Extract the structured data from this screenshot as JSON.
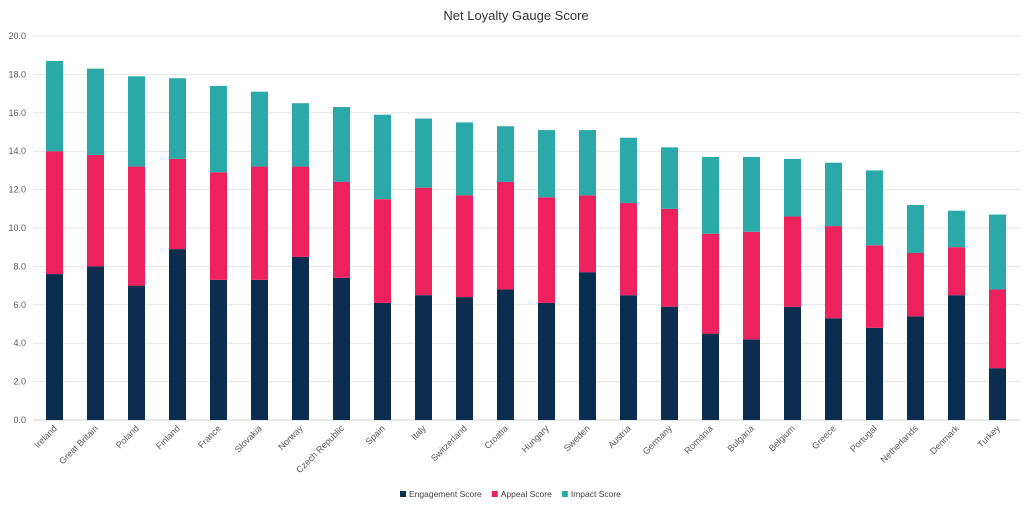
{
  "chart_data": {
    "type": "bar",
    "stacked": true,
    "title": "Net Loyalty Gauge Score",
    "xlabel": "",
    "ylabel": "",
    "ylim": [
      0,
      20
    ],
    "yticks": [
      "0.0",
      "2.0",
      "4.0",
      "6.0",
      "8.0",
      "10.0",
      "12.0",
      "14.0",
      "16.0",
      "18.0",
      "20.0"
    ],
    "grid": true,
    "legend_position": "bottom",
    "categories": [
      "Ireland",
      "Great Britain",
      "Poland",
      "Finland",
      "France",
      "Slovakia",
      "Norway",
      "Czech Republic",
      "Spain",
      "Italy",
      "Switzerland",
      "Croatia",
      "Hungary",
      "Sweden",
      "Austria",
      "Germany",
      "Romania",
      "Bulgaria",
      "Belgium",
      "Greece",
      "Portugal",
      "Netherlands",
      "Denmark",
      "Turkey"
    ],
    "series": [
      {
        "name": "Engagement Score",
        "color": "#0b2d4f",
        "values": [
          7.6,
          8.0,
          7.0,
          8.9,
          7.3,
          7.3,
          8.5,
          7.4,
          6.1,
          6.5,
          6.4,
          6.8,
          6.1,
          7.7,
          6.5,
          5.9,
          4.5,
          4.2,
          5.9,
          5.3,
          4.8,
          5.4,
          6.5,
          2.7
        ]
      },
      {
        "name": "Appeal Score",
        "color": "#ee215f",
        "values": [
          6.4,
          5.8,
          6.2,
          4.7,
          5.6,
          5.9,
          4.7,
          5.0,
          5.4,
          5.6,
          5.3,
          5.6,
          5.5,
          4.0,
          4.8,
          5.1,
          5.2,
          5.6,
          4.7,
          4.8,
          4.3,
          3.3,
          2.5,
          4.1
        ]
      },
      {
        "name": "Impact Score",
        "color": "#2aa9a8",
        "values": [
          4.7,
          4.5,
          4.7,
          4.2,
          4.5,
          3.9,
          3.3,
          3.9,
          4.4,
          3.6,
          3.8,
          2.9,
          3.5,
          3.4,
          3.4,
          3.2,
          4.0,
          3.9,
          3.0,
          3.3,
          3.9,
          2.5,
          1.9,
          3.9
        ]
      }
    ]
  }
}
